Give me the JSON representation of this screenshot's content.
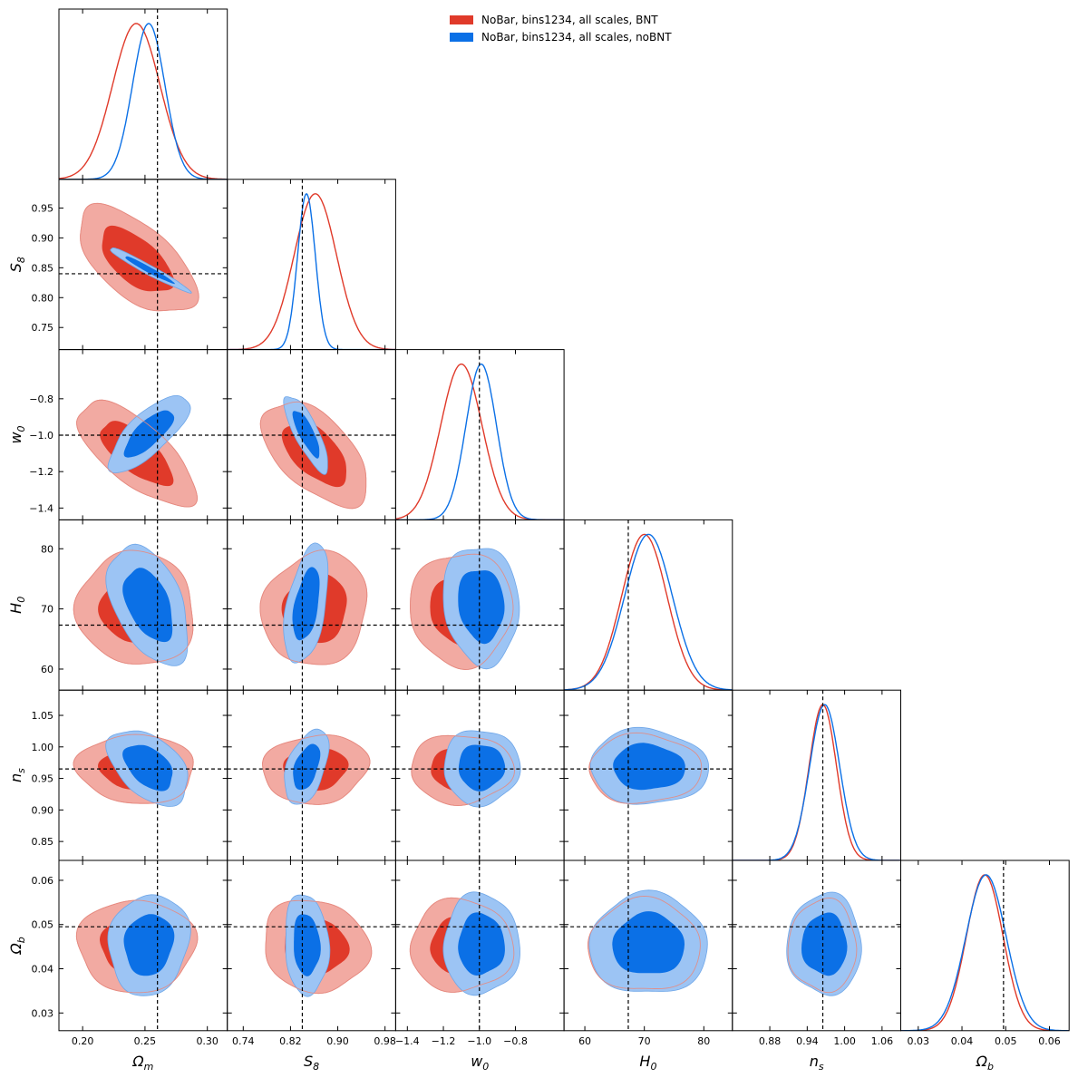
{
  "chart_data": {
    "type": "corner",
    "parameters": [
      {
        "name": "Omega_m",
        "label_main": "Ω",
        "label_sub": "m",
        "truth": 0.26,
        "range": [
          0.181,
          0.316
        ],
        "ticks": [
          0.2,
          0.25,
          0.3
        ],
        "tick_labels": [
          "0.20",
          "0.25",
          "0.30"
        ]
      },
      {
        "name": "S_8",
        "label_main": "S",
        "label_sub": "8",
        "truth": 0.84,
        "range": [
          0.713,
          0.998
        ],
        "ticks": [
          0.75,
          0.8,
          0.85,
          0.9,
          0.95
        ],
        "tick_labels": [
          "0.75",
          "0.80",
          "0.85",
          "0.90",
          "0.95"
        ],
        "x_ticks": [
          0.74,
          0.82,
          0.9,
          0.98
        ],
        "x_tick_labels": [
          "0.74",
          "0.82",
          "0.90",
          "0.98"
        ]
      },
      {
        "name": "w_0",
        "label_main": "w",
        "label_sub": "0",
        "truth": -1.0,
        "range": [
          -1.465,
          -0.53
        ],
        "ticks": [
          -1.4,
          -1.2,
          -1.0,
          -0.8
        ],
        "tick_labels": [
          "−1.4",
          "−1.2",
          "−1.0",
          "−0.8"
        ]
      },
      {
        "name": "H_0",
        "label_main": "H",
        "label_sub": "0",
        "truth": 67.3,
        "range": [
          56.5,
          84.8
        ],
        "ticks": [
          60,
          70,
          80
        ],
        "tick_labels": [
          "60",
          "70",
          "80"
        ]
      },
      {
        "name": "n_s",
        "label_main": "n",
        "label_sub": "s",
        "truth": 0.965,
        "range": [
          0.82,
          1.09
        ],
        "ticks": [
          0.85,
          0.9,
          0.95,
          1.0,
          1.05
        ],
        "tick_labels": [
          "0.85",
          "0.90",
          "0.95",
          "1.00",
          "1.05"
        ],
        "x_ticks": [
          0.88,
          0.94,
          1.0,
          1.06
        ],
        "x_tick_labels": [
          "0.88",
          "0.94",
          "1.00",
          "1.06"
        ]
      },
      {
        "name": "Omega_b",
        "label_main": "Ω",
        "label_sub": "b",
        "truth": 0.0495,
        "range": [
          0.026,
          0.0645
        ],
        "ticks": [
          0.03,
          0.04,
          0.05,
          0.06
        ],
        "tick_labels": [
          "0.03",
          "0.04",
          "0.05",
          "0.06"
        ],
        "x_ticks": [
          0.03,
          0.04,
          0.05,
          0.06
        ],
        "x_tick_labels": [
          "0.03",
          "0.04",
          "0.05",
          "0.06"
        ]
      }
    ],
    "series": [
      {
        "name": "NoBar, bins1234, all scales, BNT",
        "color": "#e03a2a",
        "inner_color": "#e03a2a",
        "outer_color": "#f2aaa2",
        "contour_line_color": "#e58a80",
        "mean": [
          0.243,
          0.862,
          -1.1,
          70.0,
          0.965,
          0.0452
        ],
        "sigma": [
          0.019,
          0.036,
          0.115,
          3.8,
          0.022,
          0.0042
        ],
        "skew": [
          0,
          0,
          0,
          0,
          0,
          0
        ]
      },
      {
        "name": "NoBar, bins1234, all scales, noBNT",
        "color": "#0b70e6",
        "inner_color": "#0b70e6",
        "outer_color": "#9cc4f4",
        "contour_line_color": "#6ea6e8",
        "mean": [
          0.253,
          0.847,
          -0.99,
          70.7,
          0.968,
          0.0455
        ],
        "sigma": [
          0.013,
          0.015,
          0.085,
          4.0,
          0.024,
          0.0046
        ],
        "skew": [
          0,
          0,
          0,
          0,
          0,
          0
        ]
      }
    ],
    "correlations_BNT": [
      [
        1,
        -0.6,
        -0.7,
        -0.05,
        -0.05,
        0
      ],
      [
        -0.6,
        1,
        -0.55,
        0.1,
        0.1,
        -0.1
      ],
      [
        -0.7,
        -0.55,
        1,
        0,
        0,
        0
      ],
      [
        -0.05,
        0.1,
        0,
        1,
        0,
        0
      ],
      [
        -0.05,
        0.1,
        0,
        0,
        1,
        0
      ],
      [
        0,
        -0.1,
        0,
        0,
        0,
        1
      ]
    ],
    "correlations_noBNT": [
      [
        1,
        -0.97,
        0.75,
        -0.45,
        -0.45,
        0.1
      ],
      [
        -0.97,
        1,
        -0.8,
        0.45,
        0.45,
        -0.1
      ],
      [
        0.75,
        -0.8,
        1,
        -0.1,
        0,
        0
      ],
      [
        -0.45,
        0.45,
        -0.1,
        1,
        -0.05,
        0
      ],
      [
        -0.45,
        0.45,
        0,
        -0.05,
        1,
        0
      ],
      [
        0.1,
        -0.1,
        0,
        0,
        0,
        1
      ]
    ],
    "legend_position": "top-right",
    "levels": [
      "68%",
      "95%"
    ]
  },
  "legend": {
    "items": [
      {
        "label": "NoBar, bins1234, all scales, BNT",
        "color": "#e03a2a"
      },
      {
        "label": "NoBar, bins1234, all scales, noBNT",
        "color": "#0b70e6"
      }
    ]
  }
}
